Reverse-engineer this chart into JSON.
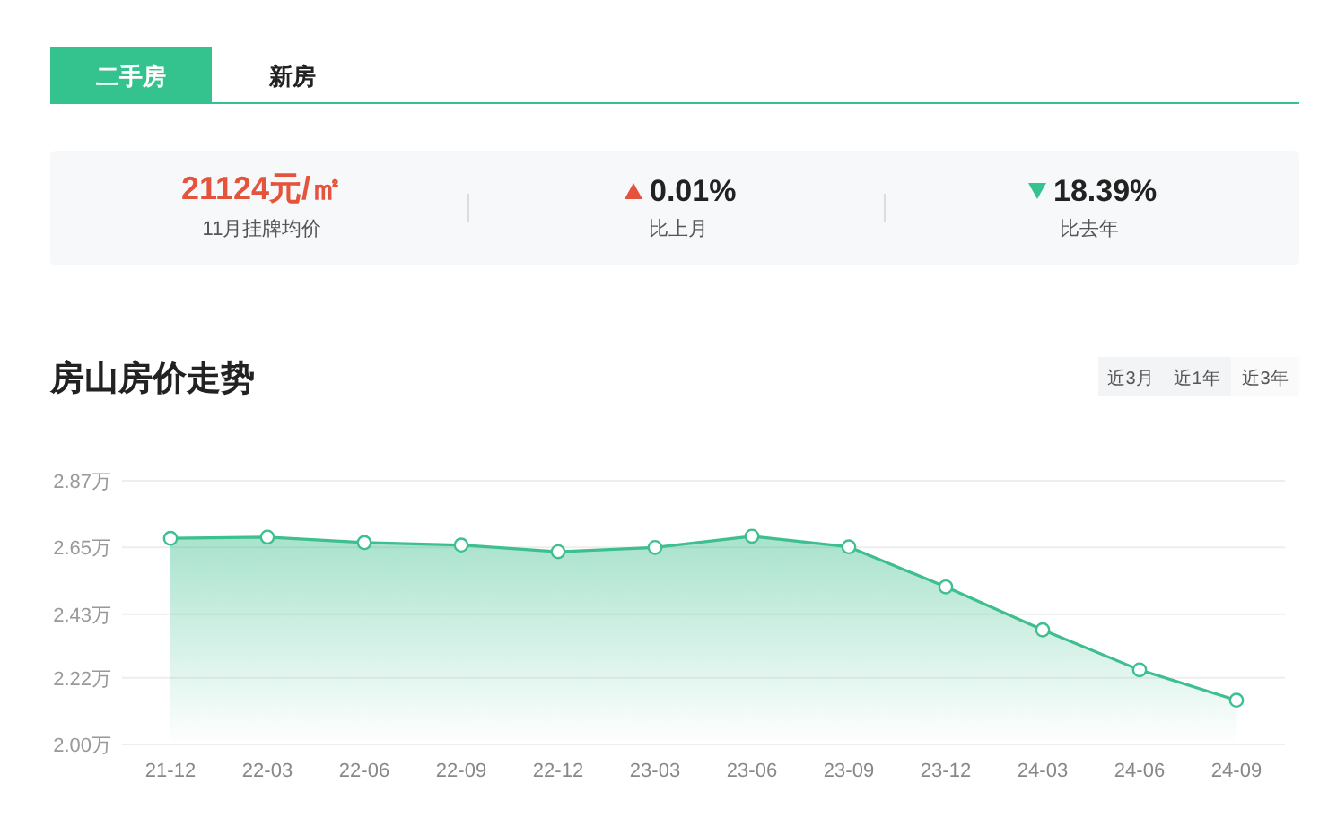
{
  "chart_data": {
    "type": "area",
    "title": "房山房价走势",
    "categories": [
      "21-12",
      "22-03",
      "22-06",
      "22-09",
      "22-12",
      "23-03",
      "23-06",
      "23-09",
      "23-12",
      "24-03",
      "24-06",
      "24-09"
    ],
    "series": [
      {
        "color": "#3dbf8f",
        "values": [
          2.68,
          2.684,
          2.666,
          2.658,
          2.636,
          2.65,
          2.687,
          2.652,
          2.52,
          2.378,
          2.246,
          2.146
        ]
      }
    ],
    "ylim": [
      2.0,
      2.87
    ],
    "yticks": [
      {
        "value": 2.0,
        "label": "2.00万"
      },
      {
        "value": 2.22,
        "label": "2.22万"
      },
      {
        "value": 2.43,
        "label": "2.43万"
      },
      {
        "value": 2.65,
        "label": "2.65万"
      },
      {
        "value": 2.87,
        "label": "2.87万"
      }
    ],
    "grid": "y",
    "marker": "circle",
    "annotations": [
      "二手房",
      "新房",
      "21124元/㎡",
      "11月挂牌均价",
      "0.01%",
      "比上月",
      "18.39%",
      "比去年",
      "近3月",
      "近1年",
      "近3年"
    ]
  }
}
